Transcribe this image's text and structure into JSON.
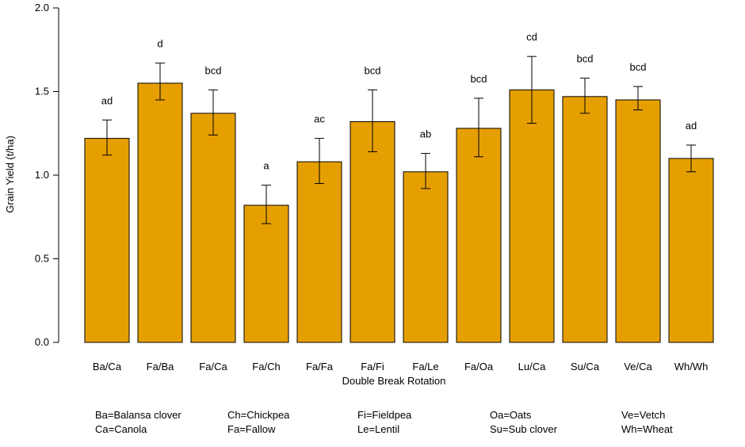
{
  "chart_data": {
    "type": "bar",
    "xlabel": "Double Break Rotation",
    "ylabel": "Grain Yield (t/ha)",
    "ylim": [
      0,
      2.0
    ],
    "yticks": [
      "0.0",
      "0.5",
      "1.0",
      "1.5",
      "2.0"
    ],
    "bar_color": "#E69F00",
    "grid": false,
    "categories": [
      "Ba/Ca",
      "Fa/Ba",
      "Fa/Ca",
      "Fa/Ch",
      "Fa/Fa",
      "Fa/Fi",
      "Fa/Le",
      "Fa/Oa",
      "Lu/Ca",
      "Su/Ca",
      "Ve/Ca",
      "Wh/Wh"
    ],
    "values": [
      1.22,
      1.55,
      1.37,
      0.82,
      1.08,
      1.32,
      1.02,
      1.28,
      1.51,
      1.47,
      1.45,
      1.1
    ],
    "error_low": [
      1.12,
      1.45,
      1.24,
      0.71,
      0.95,
      1.14,
      0.92,
      1.11,
      1.31,
      1.37,
      1.39,
      1.02
    ],
    "error_high": [
      1.33,
      1.67,
      1.51,
      0.94,
      1.22,
      1.51,
      1.13,
      1.46,
      1.71,
      1.58,
      1.53,
      1.18
    ],
    "significance": [
      "ad",
      "d",
      "bcd",
      "a",
      "ac",
      "bcd",
      "ab",
      "bcd",
      "cd",
      "bcd",
      "bcd",
      "ad"
    ],
    "legend": [
      [
        "Ba=Balansa clover",
        "Ca=Canola"
      ],
      [
        "Ch=Chickpea",
        "Fa=Fallow"
      ],
      [
        "Fi=Fieldpea",
        "Le=Lentil"
      ],
      [
        "Oa=Oats",
        "Su=Sub clover"
      ],
      [
        "Ve=Vetch",
        "Wh=Wheat"
      ]
    ]
  }
}
